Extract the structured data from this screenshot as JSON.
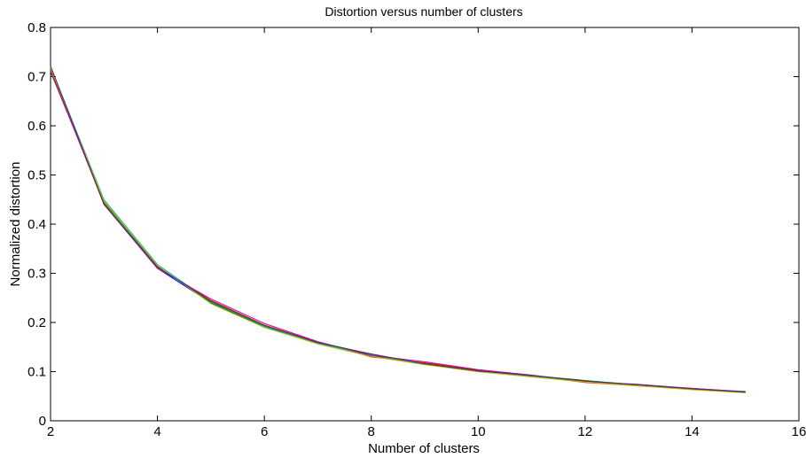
{
  "chart_data": {
    "type": "line",
    "title": "Distortion versus number of clusters",
    "xlabel": "Number of clusters",
    "ylabel": "Normalized distortion",
    "xlim": [
      2,
      16
    ],
    "ylim": [
      0,
      0.8
    ],
    "xticks": [
      2,
      4,
      6,
      8,
      10,
      12,
      14,
      16
    ],
    "yticks": [
      0,
      0.1,
      0.2,
      0.3,
      0.4,
      0.5,
      0.6,
      0.7,
      0.8
    ],
    "x": [
      2,
      3,
      4,
      5,
      6,
      7,
      8,
      9,
      10,
      11,
      12,
      13,
      14,
      15
    ],
    "grid": false,
    "series": [
      {
        "color": "#0000ff",
        "values": [
          0.72,
          0.44,
          0.31,
          0.24,
          0.19,
          0.16,
          0.135,
          0.115,
          0.1,
          0.09,
          0.08,
          0.072,
          0.065,
          0.058
        ]
      },
      {
        "color": "#008000",
        "values": [
          0.71,
          0.445,
          0.315,
          0.24,
          0.192,
          0.158,
          0.132,
          0.117,
          0.102,
          0.092,
          0.082,
          0.073,
          0.066,
          0.059
        ]
      },
      {
        "color": "#ff0000",
        "values": [
          0.715,
          0.44,
          0.312,
          0.245,
          0.195,
          0.16,
          0.13,
          0.118,
          0.103,
          0.091,
          0.078,
          0.071,
          0.064,
          0.058
        ]
      },
      {
        "color": "#00bfbf",
        "values": [
          0.72,
          0.45,
          0.318,
          0.242,
          0.193,
          0.157,
          0.134,
          0.116,
          0.101,
          0.09,
          0.081,
          0.072,
          0.065,
          0.06
        ]
      },
      {
        "color": "#bf00bf",
        "values": [
          0.712,
          0.442,
          0.31,
          0.248,
          0.198,
          0.161,
          0.133,
          0.12,
          0.104,
          0.093,
          0.08,
          0.074,
          0.066,
          0.059
        ]
      },
      {
        "color": "#bfbf00",
        "values": [
          0.718,
          0.447,
          0.316,
          0.238,
          0.19,
          0.156,
          0.131,
          0.114,
          0.1,
          0.089,
          0.079,
          0.071,
          0.063,
          0.057
        ]
      },
      {
        "color": "#404040",
        "values": [
          0.722,
          0.441,
          0.313,
          0.243,
          0.194,
          0.159,
          0.136,
          0.116,
          0.101,
          0.092,
          0.081,
          0.073,
          0.065,
          0.058
        ]
      }
    ]
  }
}
